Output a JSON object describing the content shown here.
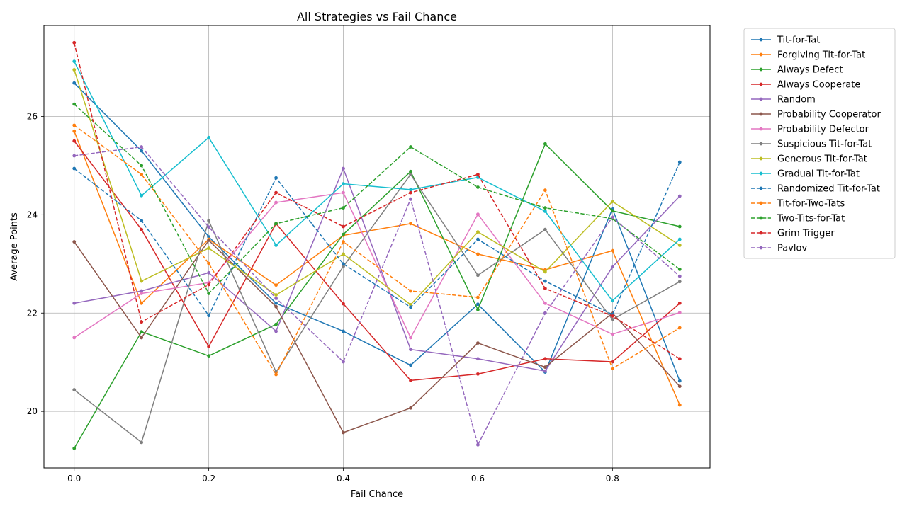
{
  "chart_data": {
    "type": "line",
    "title": "All Strategies vs Fail Chance",
    "xlabel": "Fail Chance",
    "ylabel": "Average Points",
    "x": [
      0.0,
      0.1,
      0.2,
      0.3,
      0.4,
      0.5,
      0.6,
      0.7,
      0.8,
      0.9
    ],
    "xlim": [
      -0.045,
      0.945
    ],
    "ylim": [
      18.85,
      27.85
    ],
    "xticks": [
      0.0,
      0.2,
      0.4,
      0.6,
      0.8
    ],
    "xtick_labels": [
      "0.0",
      "0.2",
      "0.4",
      "0.6",
      "0.8"
    ],
    "yticks": [
      20,
      22,
      24,
      26
    ],
    "ytick_labels": [
      "20",
      "22",
      "24",
      "26"
    ],
    "grid": true,
    "legend_position": "outside-right",
    "series": [
      {
        "name": "Tit-for-Tat",
        "color": "#1f77b4",
        "dashed": false,
        "values": [
          26.68,
          25.3,
          23.55,
          22.2,
          21.63,
          20.94,
          22.18,
          20.8,
          24.12,
          20.62
        ]
      },
      {
        "name": "Forgiving Tit-for-Tat",
        "color": "#ff7f0e",
        "dashed": false,
        "values": [
          25.7,
          22.2,
          23.5,
          22.57,
          23.58,
          23.82,
          23.2,
          22.88,
          23.27,
          20.13
        ]
      },
      {
        "name": "Always Defect",
        "color": "#2ca02c",
        "dashed": false,
        "values": [
          19.25,
          21.62,
          21.13,
          21.77,
          23.6,
          24.88,
          22.07,
          25.44,
          24.08,
          23.76
        ]
      },
      {
        "name": "Always Cooperate",
        "color": "#d62728",
        "dashed": false,
        "values": [
          25.5,
          23.7,
          21.32,
          23.82,
          22.19,
          20.63,
          20.76,
          21.07,
          21.01,
          22.2
        ]
      },
      {
        "name": "Random",
        "color": "#9467bd",
        "dashed": false,
        "values": [
          22.2,
          22.45,
          22.82,
          21.63,
          24.94,
          21.26,
          21.07,
          20.82,
          22.94,
          24.38
        ]
      },
      {
        "name": "Probability Cooperator",
        "color": "#8c564b",
        "dashed": false,
        "values": [
          23.45,
          21.5,
          23.48,
          22.13,
          19.57,
          20.07,
          21.39,
          20.9,
          22.0,
          20.51
        ]
      },
      {
        "name": "Probability Defector",
        "color": "#e377c2",
        "dashed": false,
        "values": [
          21.5,
          22.4,
          22.62,
          24.25,
          24.45,
          21.5,
          24.01,
          22.2,
          21.57,
          22.01
        ]
      },
      {
        "name": "Suspicious Tit-for-Tat",
        "color": "#7f7f7f",
        "dashed": false,
        "values": [
          20.44,
          19.37,
          23.88,
          20.8,
          22.95,
          24.82,
          22.77,
          23.7,
          21.87,
          22.64
        ]
      },
      {
        "name": "Generous Tit-for-Tat",
        "color": "#bcbd22",
        "dashed": false,
        "values": [
          26.95,
          22.65,
          23.32,
          22.37,
          23.2,
          22.17,
          23.65,
          22.84,
          24.27,
          23.38
        ]
      },
      {
        "name": "Gradual Tit-for-Tat",
        "color": "#17becf",
        "dashed": false,
        "values": [
          27.12,
          24.39,
          25.57,
          23.38,
          24.63,
          24.51,
          24.76,
          24.07,
          22.25,
          23.5
        ]
      },
      {
        "name": "Randomized Tit-for-Tat",
        "color": "#1f77b4",
        "dashed": true,
        "values": [
          24.94,
          23.88,
          21.95,
          24.75,
          23.0,
          22.12,
          23.5,
          22.65,
          21.97,
          25.07
        ]
      },
      {
        "name": "Tit-for-Two-Tats",
        "color": "#ff7f0e",
        "dashed": true,
        "values": [
          25.82,
          24.82,
          23.01,
          20.75,
          23.45,
          22.45,
          22.32,
          24.5,
          20.87,
          21.7
        ]
      },
      {
        "name": "Two-Tits-for-Tat",
        "color": "#2ca02c",
        "dashed": true,
        "values": [
          26.25,
          25.0,
          22.4,
          23.82,
          24.14,
          25.38,
          24.56,
          24.14,
          23.92,
          22.89
        ]
      },
      {
        "name": "Grim Trigger",
        "color": "#d62728",
        "dashed": true,
        "values": [
          27.5,
          21.82,
          22.58,
          24.45,
          23.76,
          24.45,
          24.82,
          22.5,
          21.94,
          21.07
        ]
      },
      {
        "name": "Pavlov",
        "color": "#9467bd",
        "dashed": true,
        "values": [
          25.2,
          25.38,
          23.75,
          22.3,
          21.01,
          24.32,
          19.32,
          22.0,
          23.95,
          22.75
        ]
      }
    ]
  }
}
